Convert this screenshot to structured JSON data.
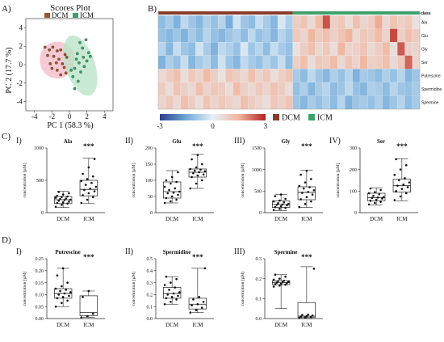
{
  "panel_labels": {
    "A": "A)",
    "B": "B)",
    "C": "C)",
    "D": "D)"
  },
  "chart_data": [
    {
      "id": "scores",
      "type": "scatter",
      "title": "Scores Plot",
      "xlabel": "PC 1 (58.3 %)",
      "ylabel": "PC 2 (17.7 %)",
      "xlim": [
        -5,
        5
      ],
      "ylim": [
        -5,
        5
      ],
      "xticks": [
        -4,
        -2,
        0,
        2,
        4
      ],
      "yticks": [
        -4,
        -2,
        0,
        2,
        4
      ],
      "xtick_labels": [
        "-4",
        "-2",
        "0",
        "2",
        "4"
      ],
      "ytick_labels": [
        "-4",
        "-2",
        "0",
        "2",
        "4"
      ],
      "legend_position": "top",
      "series": [
        {
          "name": "DCM",
          "color": "#a0522d",
          "points": [
            [
              -2.8,
              1.9
            ],
            [
              -2.3,
              1.6
            ],
            [
              -1.9,
              1.9
            ],
            [
              -1.4,
              1.5
            ],
            [
              -1.0,
              1.6
            ],
            [
              -0.5,
              1.1
            ],
            [
              -2.5,
              1.0
            ],
            [
              -1.8,
              0.9
            ],
            [
              -1.2,
              0.6
            ],
            [
              -0.8,
              0.1
            ],
            [
              -2.2,
              0.1
            ],
            [
              -1.5,
              0.2
            ],
            [
              -0.3,
              0.8
            ],
            [
              -0.6,
              -0.3
            ],
            [
              -1.4,
              -0.6
            ],
            [
              -2.0,
              -0.4
            ],
            [
              -1.0,
              -1.1
            ],
            [
              -0.4,
              -0.9
            ]
          ],
          "ellipse": {
            "cx": -1.4,
            "cy": 0.5,
            "rx": 2.0,
            "ry": 2.0,
            "angle": 0,
            "color": "#f2b8c6"
          }
        },
        {
          "name": "ICM",
          "color": "#3aa26b",
          "points": [
            [
              1.2,
              2.4
            ],
            [
              1.9,
              2.7
            ],
            [
              1.5,
              1.8
            ],
            [
              2.2,
              1.3
            ],
            [
              0.9,
              1.2
            ],
            [
              1.6,
              0.8
            ],
            [
              1.1,
              0.2
            ],
            [
              2.0,
              0.4
            ],
            [
              0.6,
              -0.4
            ],
            [
              1.3,
              -0.8
            ],
            [
              0.4,
              -1.3
            ],
            [
              1.0,
              -1.8
            ],
            [
              0.6,
              -2.6
            ],
            [
              1.7,
              -0.2
            ],
            [
              2.4,
              0.9
            ],
            [
              0.8,
              0.6
            ],
            [
              0.2,
              -0.6
            ]
          ],
          "ellipse": {
            "cx": 1.25,
            "cy": -0.1,
            "rx": 1.7,
            "ry": 3.4,
            "angle": -18,
            "color": "#b6e3c6"
          }
        }
      ]
    },
    {
      "id": "heatmap",
      "type": "heatmap",
      "header_label": "class",
      "rows": [
        "Ala",
        "Glu",
        "Gly",
        "Ser",
        "Putrescine",
        "Spermidine",
        "Spermine"
      ],
      "class_groups": [
        {
          "name": "DCM",
          "color": "#8b3a2a",
          "count": 18
        },
        {
          "name": "ICM",
          "color": "#3aa26b",
          "count": 17
        }
      ],
      "color_scale": {
        "min": -3,
        "max": 3,
        "tick_labels": [
          "-3",
          "0",
          "3"
        ],
        "colors": [
          "#2c3e8c",
          "#6fa9d8",
          "#e6f0f8",
          "#f1b49c",
          "#b22222"
        ]
      },
      "values": [
        [
          -1.1,
          -0.8,
          -1.3,
          -0.5,
          -0.9,
          -1.2,
          -0.7,
          -1.0,
          -0.6,
          -1.4,
          -0.3,
          -0.9,
          -1.1,
          -0.4,
          -0.8,
          -1.2,
          -0.2,
          -0.7,
          0.9,
          1.1,
          0.6,
          1.3,
          2.5,
          0.8,
          1.0,
          0.5,
          1.2,
          0.7,
          0.9,
          1.6,
          0.6,
          1.1,
          0.8,
          1.0,
          0.4
        ],
        [
          -1.0,
          -1.2,
          -0.9,
          -1.3,
          -0.8,
          -1.1,
          -0.6,
          -1.0,
          -1.2,
          -0.9,
          -0.7,
          -1.1,
          -0.5,
          -1.0,
          -0.8,
          -1.2,
          -0.6,
          -0.9,
          1.0,
          0.7,
          1.4,
          0.9,
          1.2,
          0.8,
          1.1,
          1.5,
          0.6,
          1.0,
          0.9,
          1.3,
          0.7,
          2.6,
          0.8,
          1.2,
          0.9
        ],
        [
          -0.6,
          -1.2,
          -0.4,
          -0.9,
          -1.1,
          -0.3,
          -0.8,
          -1.3,
          -0.5,
          -0.7,
          -1.0,
          -0.2,
          -0.9,
          -0.6,
          -1.1,
          -0.4,
          -0.8,
          -1.0,
          0.4,
          0.9,
          1.2,
          0.6,
          1.0,
          0.5,
          1.4,
          0.7,
          0.8,
          1.1,
          0.6,
          0.9,
          1.3,
          0.5,
          2.4,
          0.8,
          0.7
        ],
        [
          -1.3,
          -0.7,
          -1.0,
          -0.4,
          -1.2,
          -0.8,
          -0.6,
          -1.1,
          -0.3,
          -0.9,
          -1.2,
          -0.5,
          -0.8,
          -1.0,
          -0.6,
          -0.9,
          -0.4,
          -1.1,
          0.8,
          1.2,
          0.5,
          1.0,
          0.9,
          1.3,
          0.6,
          1.1,
          0.7,
          1.4,
          0.8,
          0.9,
          1.2,
          0.6,
          1.0,
          2.3,
          0.7
        ],
        [
          0.6,
          0.9,
          1.2,
          0.5,
          1.0,
          0.7,
          1.3,
          0.8,
          0.4,
          1.1,
          0.9,
          0.6,
          1.2,
          0.7,
          1.0,
          0.5,
          0.8,
          1.1,
          -0.8,
          -1.1,
          -0.5,
          -0.9,
          -1.2,
          -0.7,
          -1.0,
          -0.6,
          -1.3,
          -0.8,
          -0.9,
          -1.1,
          -0.7,
          -1.0,
          -0.6,
          -1.2,
          -0.9
        ],
        [
          0.9,
          0.5,
          1.1,
          0.8,
          0.6,
          1.2,
          0.7,
          1.0,
          0.9,
          0.5,
          1.3,
          0.8,
          0.6,
          1.0,
          0.7,
          1.1,
          0.9,
          0.5,
          -1.0,
          -0.7,
          -1.2,
          -0.8,
          -0.6,
          -1.1,
          -0.9,
          -0.5,
          -1.0,
          -1.2,
          -0.7,
          -0.8,
          -1.1,
          -0.6,
          -0.9,
          -1.0,
          -0.8
        ],
        [
          0.7,
          1.0,
          0.6,
          1.2,
          0.9,
          0.5,
          1.1,
          0.7,
          1.0,
          0.8,
          0.6,
          1.2,
          0.9,
          0.7,
          0.5,
          1.0,
          0.8,
          1.1,
          -0.9,
          -1.2,
          -0.8,
          -1.0,
          -0.7,
          -1.1,
          -0.6,
          -1.3,
          -0.9,
          -0.8,
          -1.0,
          -0.7,
          -1.2,
          -0.9,
          -0.6,
          -1.1,
          -0.8
        ]
      ]
    },
    {
      "id": "ala",
      "type": "box",
      "title": "Ala",
      "panel": "I)",
      "ylabel": "concentration [µM]",
      "ylim": [
        0,
        1000
      ],
      "yticks": [
        0,
        500,
        1000
      ],
      "ytick_labels": [
        "0",
        "500",
        "1000"
      ],
      "categories": [
        "DCM",
        "ICM"
      ],
      "significance": "***",
      "boxes": [
        {
          "min": 80,
          "q1": 140,
          "median": 200,
          "q3": 250,
          "max": 330,
          "points": [
            90,
            120,
            140,
            150,
            160,
            170,
            185,
            195,
            200,
            210,
            220,
            230,
            240,
            250,
            260,
            280,
            300,
            320
          ]
        },
        {
          "min": 140,
          "q1": 260,
          "median": 360,
          "q3": 500,
          "max": 840,
          "points": [
            150,
            200,
            240,
            270,
            300,
            330,
            350,
            370,
            400,
            430,
            460,
            490,
            520,
            560,
            600,
            700,
            830
          ]
        }
      ]
    },
    {
      "id": "glu",
      "type": "box",
      "title": "Glu",
      "panel": "II)",
      "ylabel": "concentration [µM]",
      "ylim": [
        0,
        200
      ],
      "yticks": [
        0,
        50,
        100,
        150,
        200
      ],
      "ytick_labels": [
        "0",
        "50",
        "100",
        "150",
        "200"
      ],
      "categories": [
        "DCM",
        "ICM"
      ],
      "significance": "***",
      "boxes": [
        {
          "min": 30,
          "q1": 45,
          "median": 65,
          "q3": 95,
          "max": 130,
          "points": [
            30,
            35,
            40,
            45,
            50,
            55,
            60,
            62,
            65,
            70,
            75,
            80,
            90,
            95,
            100,
            110,
            125
          ]
        },
        {
          "min": 75,
          "q1": 110,
          "median": 125,
          "q3": 135,
          "max": 180,
          "points": [
            75,
            90,
            100,
            110,
            115,
            118,
            122,
            125,
            128,
            130,
            133,
            135,
            140,
            150,
            165,
            178
          ]
        }
      ]
    },
    {
      "id": "gly",
      "type": "box",
      "title": "Gly",
      "panel": "III)",
      "ylabel": "concentration [µM]",
      "ylim": [
        0,
        1500
      ],
      "yticks": [
        0,
        500,
        1000,
        1500
      ],
      "ytick_labels": [
        "0",
        "500",
        "1000",
        "1500"
      ],
      "categories": [
        "DCM",
        "ICM"
      ],
      "significance": "***",
      "boxes": [
        {
          "min": 50,
          "q1": 120,
          "median": 190,
          "q3": 270,
          "max": 420,
          "points": [
            60,
            90,
            110,
            130,
            150,
            170,
            180,
            190,
            200,
            220,
            240,
            260,
            280,
            320,
            380,
            420
          ]
        },
        {
          "min": 120,
          "q1": 300,
          "median": 470,
          "q3": 600,
          "max": 980,
          "points": [
            130,
            200,
            260,
            310,
            360,
            420,
            460,
            480,
            520,
            560,
            590,
            620,
            700,
            780,
            880,
            970
          ]
        }
      ]
    },
    {
      "id": "ser",
      "type": "box",
      "title": "Ser",
      "panel": "IV)",
      "ylabel": "concentration [µM]",
      "ylim": [
        0,
        300
      ],
      "yticks": [
        0,
        100,
        200,
        300
      ],
      "ytick_labels": [
        "0",
        "100",
        "200",
        "300"
      ],
      "categories": [
        "DCM",
        "ICM"
      ],
      "significance": "***",
      "boxes": [
        {
          "min": 35,
          "q1": 55,
          "median": 70,
          "q3": 90,
          "max": 115,
          "points": [
            38,
            45,
            50,
            55,
            60,
            65,
            68,
            70,
            72,
            78,
            85,
            90,
            95,
            105,
            112
          ]
        },
        {
          "min": 55,
          "q1": 95,
          "median": 125,
          "q3": 155,
          "max": 250,
          "points": [
            58,
            75,
            90,
            100,
            110,
            118,
            125,
            130,
            140,
            150,
            160,
            175,
            200,
            220,
            248
          ]
        }
      ]
    },
    {
      "id": "putrescine",
      "type": "box",
      "title": "Putrescine",
      "panel": "I)",
      "ylabel": "concentration [µM]",
      "ylim": [
        0,
        0.25
      ],
      "yticks": [
        0,
        0.05,
        0.1,
        0.15,
        0.2,
        0.25
      ],
      "ytick_labels": [
        "0.00",
        "0.05",
        "0.10",
        "0.15",
        "0.20",
        "0.25"
      ],
      "categories": [
        "DCM",
        "ICM"
      ],
      "significance": "***",
      "boxes": [
        {
          "min": 0.05,
          "q1": 0.085,
          "median": 0.105,
          "q3": 0.125,
          "max": 0.21,
          "points": [
            0.05,
            0.065,
            0.075,
            0.085,
            0.09,
            0.095,
            0.1,
            0.105,
            0.11,
            0.115,
            0.12,
            0.125,
            0.135,
            0.15,
            0.18,
            0.21
          ]
        },
        {
          "min": 0.005,
          "q1": 0.012,
          "median": 0.025,
          "q3": 0.095,
          "max": 0.115,
          "points": [
            0.005,
            0.01,
            0.02,
            0.09,
            0.115
          ]
        }
      ]
    },
    {
      "id": "spermidine",
      "type": "box",
      "title": "Spermidine",
      "panel": "II)",
      "ylabel": "concentration [µM]",
      "ylim": [
        0,
        0.5
      ],
      "yticks": [
        0,
        0.1,
        0.2,
        0.3,
        0.4,
        0.5
      ],
      "ytick_labels": [
        "0.0",
        "0.1",
        "0.2",
        "0.3",
        "0.4",
        "0.5"
      ],
      "categories": [
        "DCM",
        "ICM"
      ],
      "significance": "***",
      "boxes": [
        {
          "min": 0.12,
          "q1": 0.17,
          "median": 0.21,
          "q3": 0.26,
          "max": 0.35,
          "points": [
            0.12,
            0.14,
            0.16,
            0.17,
            0.18,
            0.19,
            0.2,
            0.21,
            0.22,
            0.24,
            0.26,
            0.28,
            0.3,
            0.33,
            0.35
          ]
        },
        {
          "min": 0.05,
          "q1": 0.08,
          "median": 0.12,
          "q3": 0.17,
          "max": 0.42,
          "points": [
            0.05,
            0.07,
            0.09,
            0.11,
            0.12,
            0.14,
            0.16,
            0.18,
            0.42
          ]
        }
      ]
    },
    {
      "id": "spermine",
      "type": "box",
      "title": "Spermine",
      "panel": "III)",
      "ylabel": "concentration [µM]",
      "ylim": [
        0,
        0.3
      ],
      "yticks": [
        0,
        0.1,
        0.2,
        0.3
      ],
      "ytick_labels": [
        "0.0",
        "0.1",
        "0.2",
        "0.3"
      ],
      "categories": [
        "DCM",
        "ICM"
      ],
      "significance": "***",
      "boxes": [
        {
          "min": 0.05,
          "q1": 0.17,
          "median": 0.18,
          "q3": 0.19,
          "max": 0.22,
          "points": [
            0.16,
            0.165,
            0.17,
            0.172,
            0.175,
            0.178,
            0.18,
            0.182,
            0.185,
            0.188,
            0.19,
            0.195,
            0.2,
            0.21,
            0.22
          ]
        },
        {
          "min": 0.0,
          "q1": 0.005,
          "median": 0.012,
          "q3": 0.08,
          "max": 0.26,
          "points": [
            0.003,
            0.006,
            0.008,
            0.01,
            0.012,
            0.015,
            0.018,
            0.02,
            0.25
          ]
        }
      ]
    }
  ]
}
